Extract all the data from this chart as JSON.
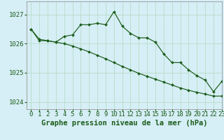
{
  "title": "Graphe pression niveau de la mer (hPa)",
  "background_color": "#d6eef5",
  "grid_color": "#b8ddc8",
  "line_color": "#1a5c1a",
  "xlim": [
    -0.5,
    23
  ],
  "ylim": [
    1023.75,
    1027.45
  ],
  "yticks": [
    1024,
    1025,
    1026,
    1027
  ],
  "xticks": [
    0,
    1,
    2,
    3,
    4,
    5,
    6,
    7,
    8,
    9,
    10,
    11,
    12,
    13,
    14,
    15,
    16,
    17,
    18,
    19,
    20,
    21,
    22,
    23
  ],
  "hours": [
    0,
    1,
    2,
    3,
    4,
    5,
    6,
    7,
    8,
    9,
    10,
    11,
    12,
    13,
    14,
    15,
    16,
    17,
    18,
    19,
    20,
    21,
    22,
    23
  ],
  "pressure1": [
    1026.5,
    1026.1,
    1026.1,
    1026.05,
    1026.25,
    1026.3,
    1026.65,
    1026.65,
    1026.7,
    1026.65,
    1027.1,
    1026.6,
    1026.35,
    1026.2,
    1026.2,
    1026.05,
    1025.65,
    1025.35,
    1025.35,
    1025.1,
    1024.9,
    1024.75,
    1024.35,
    1024.7
  ],
  "pressure2": [
    1026.5,
    1026.15,
    1026.1,
    1026.05,
    1026.0,
    1025.92,
    1025.82,
    1025.72,
    1025.6,
    1025.48,
    1025.35,
    1025.22,
    1025.1,
    1024.98,
    1024.88,
    1024.78,
    1024.68,
    1024.58,
    1024.48,
    1024.4,
    1024.33,
    1024.27,
    1024.2,
    1024.2
  ],
  "title_fontsize": 7.5,
  "tick_fontsize": 6.5
}
